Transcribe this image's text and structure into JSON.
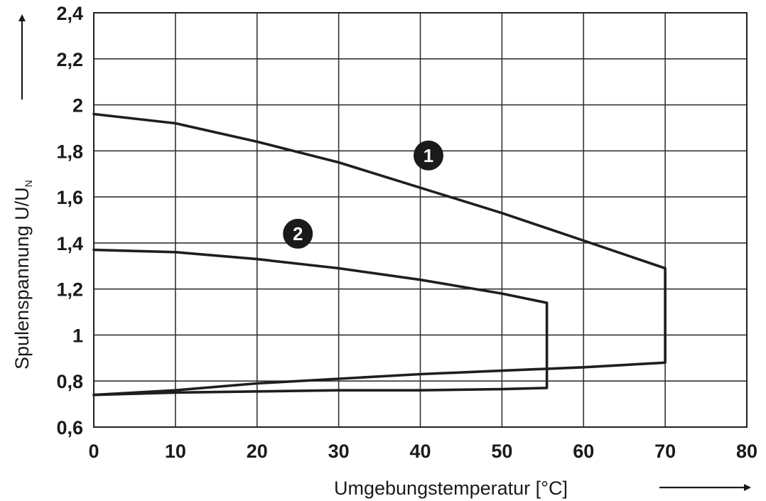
{
  "chart_data": {
    "type": "line",
    "xlabel": "Umgebungstemperatur [°C]",
    "ylabel_main": "Spulenspannung U/U",
    "ylabel_sub": "N",
    "xlim": [
      0,
      80
    ],
    "ylim": [
      0.6,
      2.4
    ],
    "x_ticks": [
      0,
      10,
      20,
      30,
      40,
      50,
      60,
      70,
      80
    ],
    "x_tick_labels": [
      "0",
      "10",
      "20",
      "30",
      "40",
      "50",
      "60",
      "70",
      "80"
    ],
    "y_ticks": [
      0.6,
      0.8,
      1.0,
      1.2,
      1.4,
      1.6,
      1.8,
      2.0,
      2.2,
      2.4
    ],
    "y_tick_labels": [
      "0,6",
      "0,8",
      "1",
      "1,2",
      "1,4",
      "1,6",
      "1,8",
      "2",
      "2,2",
      "2,4"
    ],
    "grid": true,
    "series": [
      {
        "name": "1",
        "upper": [
          [
            0,
            1.96
          ],
          [
            10,
            1.92
          ],
          [
            20,
            1.84
          ],
          [
            30,
            1.75
          ],
          [
            40,
            1.64
          ],
          [
            50,
            1.53
          ],
          [
            60,
            1.41
          ],
          [
            70,
            1.29
          ]
        ],
        "lower": [
          [
            0,
            0.74
          ],
          [
            10,
            0.76
          ],
          [
            20,
            0.79
          ],
          [
            30,
            0.81
          ],
          [
            40,
            0.83
          ],
          [
            50,
            0.845
          ],
          [
            60,
            0.86
          ],
          [
            70,
            0.88
          ]
        ]
      },
      {
        "name": "2",
        "upper": [
          [
            0,
            1.37
          ],
          [
            10,
            1.36
          ],
          [
            20,
            1.33
          ],
          [
            30,
            1.29
          ],
          [
            40,
            1.24
          ],
          [
            50,
            1.18
          ],
          [
            55.5,
            1.14
          ]
        ],
        "lower": [
          [
            0,
            0.74
          ],
          [
            10,
            0.75
          ],
          [
            20,
            0.755
          ],
          [
            30,
            0.76
          ],
          [
            40,
            0.76
          ],
          [
            50,
            0.765
          ],
          [
            55.5,
            0.77
          ]
        ]
      }
    ],
    "markers": [
      {
        "label": "1",
        "x": 41,
        "y": 1.78
      },
      {
        "label": "2",
        "x": 25,
        "y": 1.44
      }
    ]
  }
}
